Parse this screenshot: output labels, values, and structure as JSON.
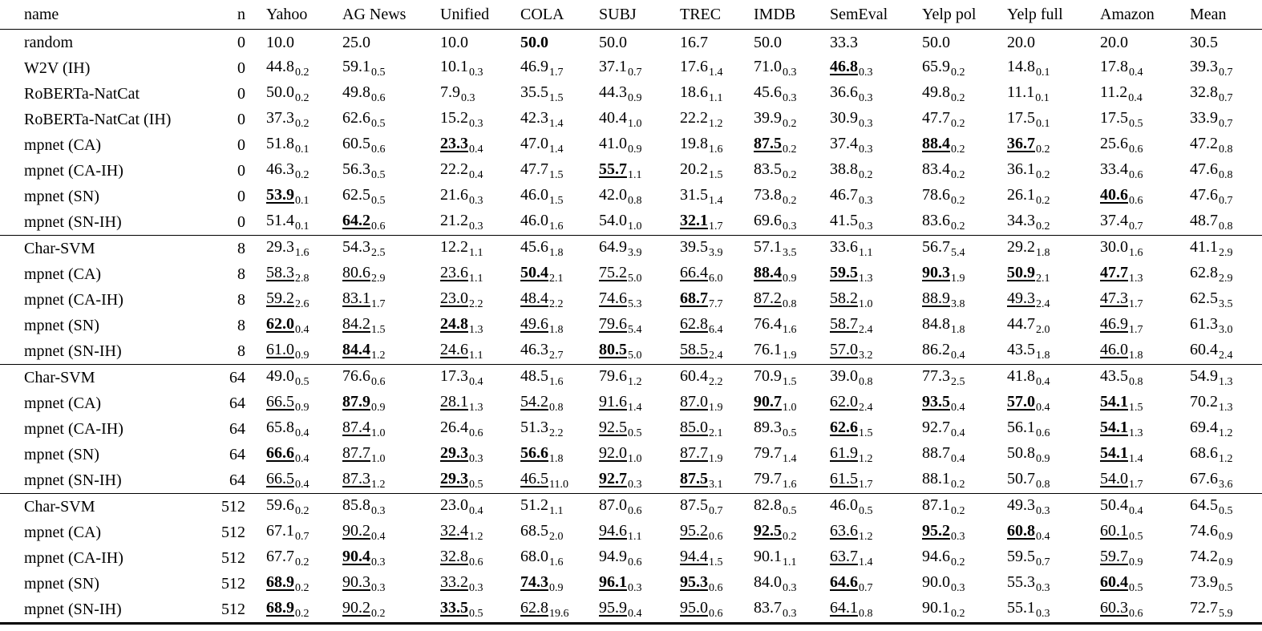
{
  "table": {
    "header": {
      "name_label": "name",
      "n_label": "n",
      "datasets": [
        "Yahoo",
        "AG News",
        "Unified",
        "COLA",
        "SUBJ",
        "TREC",
        "IMDB",
        "SemEval",
        "Yelp pol",
        "Yelp full",
        "Amazon",
        "Mean"
      ]
    },
    "groups": [
      {
        "n": "0",
        "rows": [
          {
            "name": "random",
            "cells": [
              "10.0||",
              "25.0||",
              "10.0||",
              "50.0||b",
              "50.0||",
              "16.7||",
              "50.0||",
              "33.3||",
              "50.0||",
              "20.0||",
              "20.0||",
              "30.5||"
            ]
          },
          {
            "name": "W2V (IH)",
            "cells": [
              "44.8|0.2|",
              "59.1|0.5|",
              "10.1|0.3|",
              "46.9|1.7|",
              "37.1|0.7|",
              "17.6|1.4|",
              "71.0|0.3|",
              "46.8|0.3|bu",
              "65.9|0.2|",
              "14.8|0.1|",
              "17.8|0.4|",
              "39.3|0.7|"
            ]
          },
          {
            "name": "RoBERTa-NatCat",
            "cells": [
              "50.0|0.2|",
              "49.8|0.6|",
              "7.9|0.3|",
              "35.5|1.5|",
              "44.3|0.9|",
              "18.6|1.1|",
              "45.6|0.3|",
              "36.6|0.3|",
              "49.8|0.2|",
              "11.1|0.1|",
              "11.2|0.4|",
              "32.8|0.7|"
            ]
          },
          {
            "name": "RoBERTa-NatCat (IH)",
            "cells": [
              "37.3|0.2|",
              "62.6|0.5|",
              "15.2|0.3|",
              "42.3|1.4|",
              "40.4|1.0|",
              "22.2|1.2|",
              "39.9|0.2|",
              "30.9|0.3|",
              "47.7|0.2|",
              "17.5|0.1|",
              "17.5|0.5|",
              "33.9|0.7|"
            ]
          },
          {
            "name": "mpnet (CA)",
            "cells": [
              "51.8|0.1|",
              "60.5|0.6|",
              "23.3|0.4|bu",
              "47.0|1.4|",
              "41.0|0.9|",
              "19.8|1.6|",
              "87.5|0.2|bu",
              "37.4|0.3|",
              "88.4|0.2|bu",
              "36.7|0.2|bu",
              "25.6|0.6|",
              "47.2|0.8|"
            ]
          },
          {
            "name": "mpnet (CA-IH)",
            "cells": [
              "46.3|0.2|",
              "56.3|0.5|",
              "22.2|0.4|",
              "47.7|1.5|",
              "55.7|1.1|bu",
              "20.2|1.5|",
              "83.5|0.2|",
              "38.8|0.2|",
              "83.4|0.2|",
              "36.1|0.2|",
              "33.4|0.6|",
              "47.6|0.8|"
            ]
          },
          {
            "name": "mpnet (SN)",
            "cells": [
              "53.9|0.1|bu",
              "62.5|0.5|",
              "21.6|0.3|",
              "46.0|1.5|",
              "42.0|0.8|",
              "31.5|1.4|",
              "73.8|0.2|",
              "46.7|0.3|",
              "78.6|0.2|",
              "26.1|0.2|",
              "40.6|0.6|bu",
              "47.6|0.7|"
            ]
          },
          {
            "name": "mpnet (SN-IH)",
            "cells": [
              "51.4|0.1|",
              "64.2|0.6|bu",
              "21.2|0.3|",
              "46.0|1.6|",
              "54.0|1.0|",
              "32.1|1.7|bu",
              "69.6|0.3|",
              "41.5|0.3|",
              "83.6|0.2|",
              "34.3|0.2|",
              "37.4|0.7|",
              "48.7|0.8|"
            ]
          }
        ]
      },
      {
        "n": "8",
        "rows": [
          {
            "name": "Char-SVM",
            "cells": [
              "29.3|1.6|",
              "54.3|2.5|",
              "12.2|1.1|",
              "45.6|1.8|",
              "64.9|3.9|",
              "39.5|3.9|",
              "57.1|3.5|",
              "33.6|1.1|",
              "56.7|5.4|",
              "29.2|1.8|",
              "30.0|1.6|",
              "41.1|2.9|"
            ]
          },
          {
            "name": "mpnet (CA)",
            "cells": [
              "58.3|2.8|u",
              "80.6|2.9|u",
              "23.6|1.1|u",
              "50.4|2.1|bu",
              "75.2|5.0|u",
              "66.4|6.0|u",
              "88.4|0.9|bu",
              "59.5|1.3|bu",
              "90.3|1.9|bu",
              "50.9|2.1|bu",
              "47.7|1.3|bu",
              "62.8|2.9|"
            ]
          },
          {
            "name": "mpnet (CA-IH)",
            "cells": [
              "59.2|2.6|u",
              "83.1|1.7|u",
              "23.0|2.2|u",
              "48.4|2.2|u",
              "74.6|5.3|u",
              "68.7|7.7|bu",
              "87.2|0.8|u",
              "58.2|1.0|u",
              "88.9|3.8|u",
              "49.3|2.4|u",
              "47.3|1.7|u",
              "62.5|3.5|"
            ]
          },
          {
            "name": "mpnet (SN)",
            "cells": [
              "62.0|0.4|bu",
              "84.2|1.5|u",
              "24.8|1.3|bu",
              "49.6|1.8|u",
              "79.6|5.4|u",
              "62.8|6.4|u",
              "76.4|1.6|",
              "58.7|2.4|u",
              "84.8|1.8|",
              "44.7|2.0|",
              "46.9|1.7|u",
              "61.3|3.0|"
            ]
          },
          {
            "name": "mpnet (SN-IH)",
            "cells": [
              "61.0|0.9|u",
              "84.4|1.2|bu",
              "24.6|1.1|u",
              "46.3|2.7|",
              "80.5|5.0|bu",
              "58.5|2.4|u",
              "76.1|1.9|",
              "57.0|3.2|u",
              "86.2|0.4|",
              "43.5|1.8|",
              "46.0|1.8|u",
              "60.4|2.4|"
            ]
          }
        ]
      },
      {
        "n": "64",
        "rows": [
          {
            "name": "Char-SVM",
            "cells": [
              "49.0|0.5|",
              "76.6|0.6|",
              "17.3|0.4|",
              "48.5|1.6|",
              "79.6|1.2|",
              "60.4|2.2|",
              "70.9|1.5|",
              "39.0|0.8|",
              "77.3|2.5|",
              "41.8|0.4|",
              "43.5|0.8|",
              "54.9|1.3|"
            ]
          },
          {
            "name": "mpnet (CA)",
            "cells": [
              "66.5|0.9|u",
              "87.9|0.9|bu",
              "28.1|1.3|u",
              "54.2|0.8|u",
              "91.6|1.4|u",
              "87.0|1.9|u",
              "90.7|1.0|bu",
              "62.0|2.4|u",
              "93.5|0.4|bu",
              "57.0|0.4|bu",
              "54.1|1.5|bu",
              "70.2|1.3|"
            ]
          },
          {
            "name": "mpnet (CA-IH)",
            "cells": [
              "65.8|0.4|",
              "87.4|1.0|u",
              "26.4|0.6|",
              "51.3|2.2|",
              "92.5|0.5|u",
              "85.0|2.1|u",
              "89.3|0.5|",
              "62.6|1.5|bu",
              "92.7|0.4|",
              "56.1|0.6|",
              "54.1|1.3|bu",
              "69.4|1.2|"
            ]
          },
          {
            "name": "mpnet (SN)",
            "cells": [
              "66.6|0.4|bu",
              "87.7|1.0|u",
              "29.3|0.3|bu",
              "56.6|1.8|bu",
              "92.0|1.0|u",
              "87.7|1.9|u",
              "79.7|1.4|",
              "61.9|1.2|u",
              "88.7|0.4|",
              "50.8|0.9|",
              "54.1|1.4|bu",
              "68.6|1.2|"
            ]
          },
          {
            "name": "mpnet (SN-IH)",
            "cells": [
              "66.5|0.4|u",
              "87.3|1.2|u",
              "29.3|0.5|bu",
              "46.5|11.0|u",
              "92.7|0.3|bu",
              "87.5|3.1|bu",
              "79.7|1.6|",
              "61.5|1.7|u",
              "88.1|0.2|",
              "50.7|0.8|",
              "54.0|1.7|u",
              "67.6|3.6|"
            ]
          }
        ]
      },
      {
        "n": "512",
        "rows": [
          {
            "name": "Char-SVM",
            "cells": [
              "59.6|0.2|",
              "85.8|0.3|",
              "23.0|0.4|",
              "51.2|1.1|",
              "87.0|0.6|",
              "87.5|0.7|",
              "82.8|0.5|",
              "46.0|0.5|",
              "87.1|0.2|",
              "49.3|0.3|",
              "50.4|0.4|",
              "64.5|0.5|"
            ]
          },
          {
            "name": "mpnet (CA)",
            "cells": [
              "67.1|0.7|",
              "90.2|0.4|u",
              "32.4|1.2|u",
              "68.5|2.0|",
              "94.6|1.1|u",
              "95.2|0.6|u",
              "92.5|0.2|bu",
              "63.6|1.2|u",
              "95.2|0.3|bu",
              "60.8|0.4|bu",
              "60.1|0.5|u",
              "74.6|0.9|"
            ]
          },
          {
            "name": "mpnet (CA-IH)",
            "cells": [
              "67.7|0.2|",
              "90.4|0.3|bu",
              "32.8|0.6|u",
              "68.0|1.6|",
              "94.9|0.6|",
              "94.4|1.5|u",
              "90.1|1.1|",
              "63.7|1.4|u",
              "94.6|0.2|",
              "59.5|0.7|",
              "59.7|0.9|u",
              "74.2|0.9|"
            ]
          },
          {
            "name": "mpnet (SN)",
            "cells": [
              "68.9|0.2|bu",
              "90.3|0.3|u",
              "33.2|0.3|u",
              "74.3|0.9|bu",
              "96.1|0.3|bu",
              "95.3|0.6|bu",
              "84.0|0.3|",
              "64.6|0.7|bu",
              "90.0|0.3|",
              "55.3|0.3|",
              "60.4|0.5|bu",
              "73.9|0.5|"
            ]
          },
          {
            "name": "mpnet (SN-IH)",
            "cells": [
              "68.9|0.2|bu",
              "90.2|0.2|u",
              "33.5|0.5|bu",
              "62.8|19.6|u",
              "95.9|0.4|u",
              "95.0|0.6|u",
              "83.7|0.3|",
              "64.1|0.8|u",
              "90.1|0.2|",
              "55.1|0.3|",
              "60.3|0.6|u",
              "72.7|5.9|"
            ]
          }
        ]
      }
    ]
  }
}
